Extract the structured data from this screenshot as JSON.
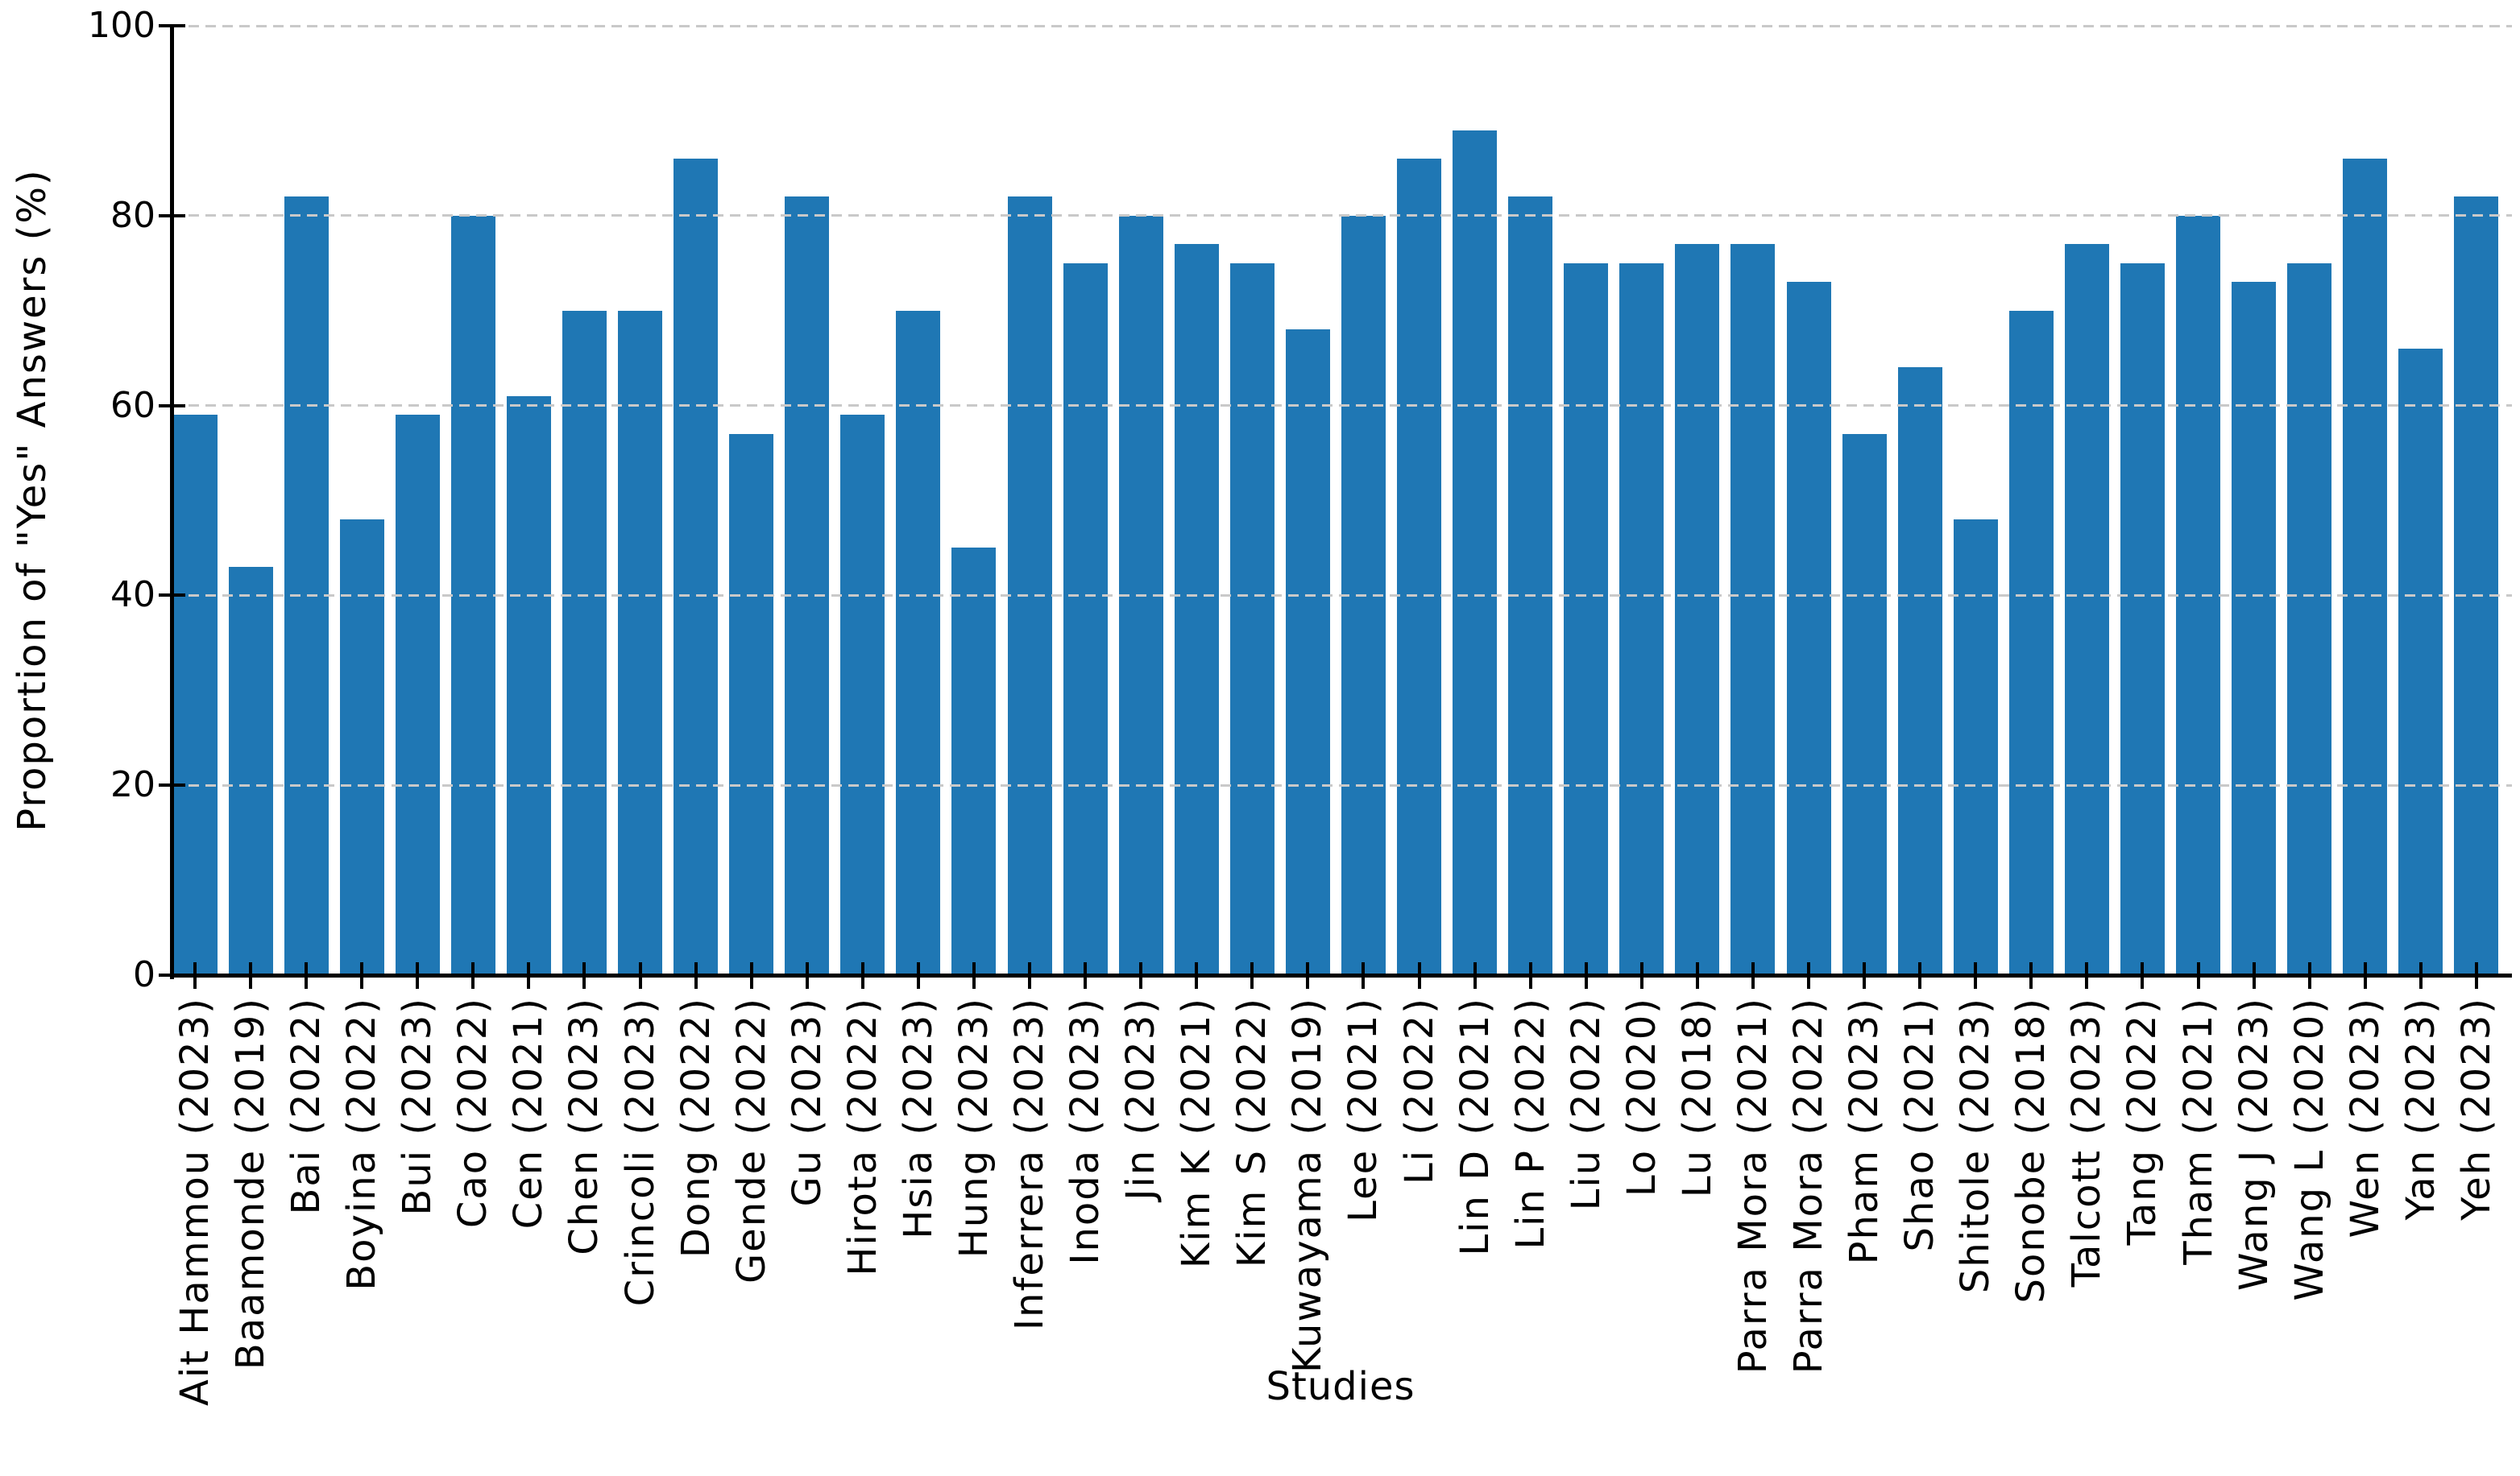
{
  "figure": {
    "background_color": "#ffffff",
    "bar_color": "#1f77b4",
    "grid_color": "#c9c9c9",
    "axis_color": "#000000",
    "text_color": "#000000"
  },
  "chart_data": {
    "type": "bar",
    "title": "",
    "xlabel": "Studies",
    "ylabel": "Proportion of \"Yes\" Answers (%)",
    "ylim": [
      0,
      100
    ],
    "yticks": [
      0,
      20,
      40,
      60,
      80,
      100
    ],
    "grid": "horizontal dashed gridlines at each y tick, drawn over bars",
    "legend_position": "none",
    "x_tick_label_rotation_deg": 90,
    "categories": [
      "Ait Hammou (2023)",
      "Baamonde (2019)",
      "Bai (2022)",
      "Boyina (2022)",
      "Bui (2023)",
      "Cao (2022)",
      "Cen (2021)",
      "Chen (2023)",
      "Crincoli (2023)",
      "Dong (2022)",
      "Gende (2022)",
      "Gu (2023)",
      "Hirota (2022)",
      "Hsia (2023)",
      "Hung (2023)",
      "Inferrera (2023)",
      "Inoda (2023)",
      "Jin (2023)",
      "Kim K (2021)",
      "Kim S (2022)",
      "Kuwayama (2019)",
      "Lee (2021)",
      "Li (2022)",
      "Lin D (2021)",
      "Lin P (2022)",
      "Liu (2022)",
      "Lo (2020)",
      "Lu (2018)",
      "Parra Mora (2021)",
      "Parra Mora (2022)",
      "Pham (2023)",
      "Shao (2021)",
      "Shitole (2023)",
      "Sonobe (2018)",
      "Talcott (2023)",
      "Tang (2022)",
      "Tham (2021)",
      "Wang J (2023)",
      "Wang L (2020)",
      "Wen (2023)",
      "Yan (2023)",
      "Yeh (2023)"
    ],
    "values": [
      59,
      43,
      82,
      48,
      59,
      80,
      61,
      70,
      70,
      86,
      57,
      82,
      59,
      70,
      45,
      82,
      75,
      80,
      77,
      75,
      68,
      80,
      86,
      89,
      82,
      75,
      75,
      77,
      77,
      73,
      57,
      64,
      48,
      70,
      77,
      75,
      80,
      73,
      75,
      86,
      66,
      82
    ]
  }
}
